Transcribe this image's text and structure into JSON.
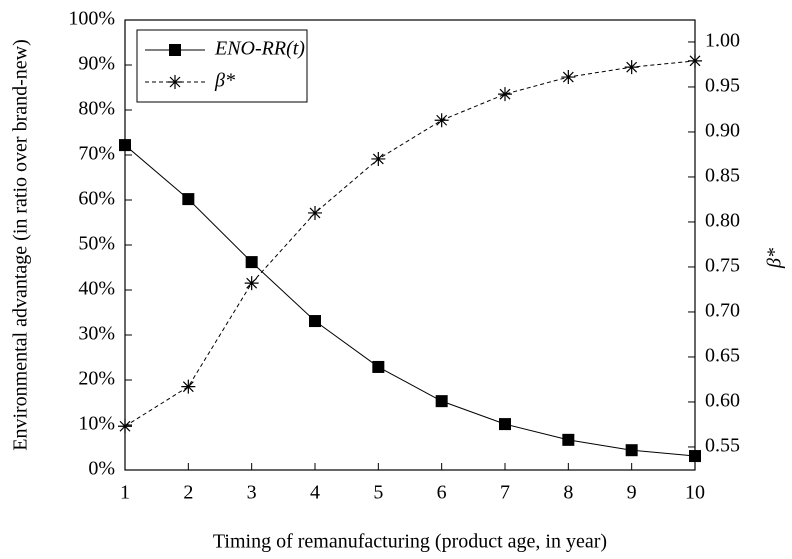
{
  "chart_data": {
    "type": "line",
    "x_label": "Timing of remanufacturing (product age, in year)",
    "y_label": "Environmental advantage (in ratio over brand-new)",
    "y2_label": "β*",
    "x": [
      1,
      2,
      3,
      4,
      5,
      6,
      7,
      8,
      9,
      10
    ],
    "xlim": [
      1,
      10
    ],
    "xticks": [
      1,
      2,
      3,
      4,
      5,
      6,
      7,
      8,
      9,
      10
    ],
    "ylim": [
      0,
      100
    ],
    "yticks": [
      {
        "value": 0,
        "label": "0%"
      },
      {
        "value": 10,
        "label": "10%"
      },
      {
        "value": 20,
        "label": "20%"
      },
      {
        "value": 30,
        "label": "30%"
      },
      {
        "value": 40,
        "label": "40%"
      },
      {
        "value": 50,
        "label": "50%"
      },
      {
        "value": 60,
        "label": "60%"
      },
      {
        "value": 70,
        "label": "70%"
      },
      {
        "value": 80,
        "label": "80%"
      },
      {
        "value": 90,
        "label": "90%"
      },
      {
        "value": 100,
        "label": "100%"
      }
    ],
    "y2lim": [
      0.5244,
      1.0244
    ],
    "y2ticks": [
      {
        "value": 0.55,
        "label": "0.55"
      },
      {
        "value": 0.6,
        "label": "0.60"
      },
      {
        "value": 0.65,
        "label": "0.65"
      },
      {
        "value": 0.7,
        "label": "0.70"
      },
      {
        "value": 0.75,
        "label": "0.75"
      },
      {
        "value": 0.8,
        "label": "0.80"
      },
      {
        "value": 0.85,
        "label": "0.85"
      },
      {
        "value": 0.9,
        "label": "0.90"
      },
      {
        "value": 0.95,
        "label": "0.95"
      },
      {
        "value": 1.0,
        "label": "1.00"
      }
    ],
    "legend": "upper left",
    "series": [
      {
        "name": "ENO-RR(t)",
        "color": "#000000",
        "axis": "y",
        "line_style": "solid",
        "marker": "square",
        "values": [
          72.2,
          60.2,
          46.2,
          33.1,
          22.9,
          15.3,
          10.2,
          6.7,
          4.4,
          3.1
        ]
      },
      {
        "name": "β*",
        "color": "#000000",
        "axis": "y2",
        "line_style": "dashed",
        "marker": "asterisk",
        "values": [
          0.573,
          0.617,
          0.732,
          0.81,
          0.87,
          0.913,
          0.942,
          0.961,
          0.972,
          0.979
        ]
      }
    ]
  }
}
